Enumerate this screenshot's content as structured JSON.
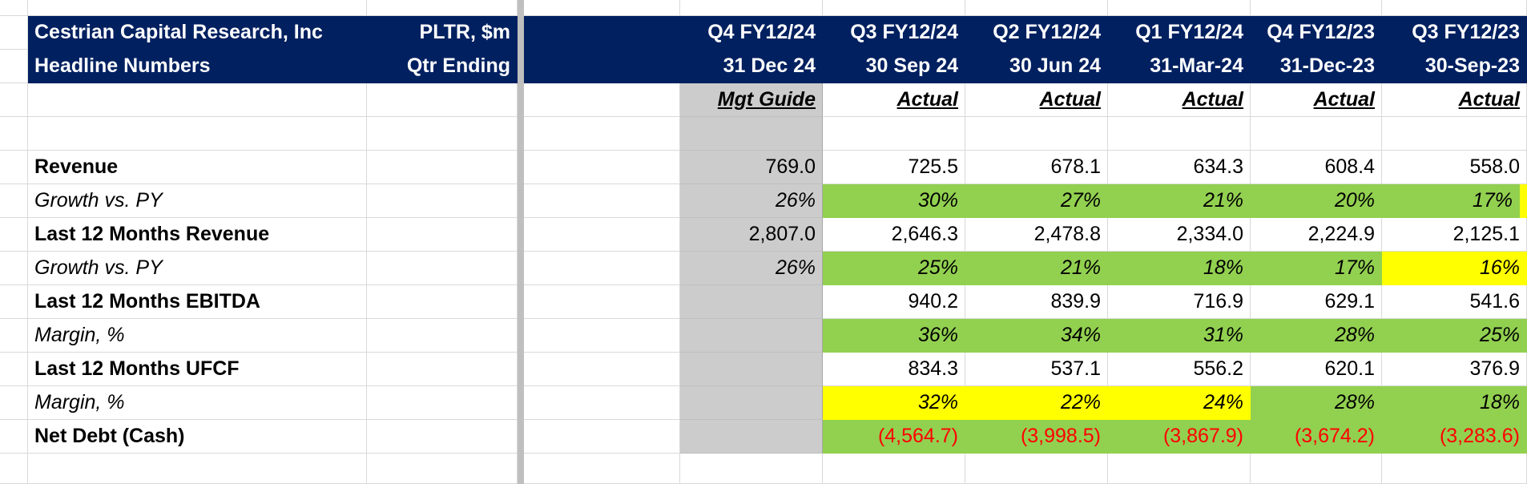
{
  "header": {
    "company": "Cestrian Capital Research, Inc",
    "subtitle": "Headline Numbers",
    "ticker": "PLTR, $m",
    "qtr_ending": "Qtr Ending"
  },
  "columns": [
    {
      "quarter": "Q4 FY12/24",
      "date": "31 Dec 24",
      "kind": "Mgt Guide"
    },
    {
      "quarter": "Q3 FY12/24",
      "date": "30 Sep 24",
      "kind": "Actual"
    },
    {
      "quarter": "Q2 FY12/24",
      "date": "30 Jun 24",
      "kind": "Actual"
    },
    {
      "quarter": "Q1 FY12/24",
      "date": "31-Mar-24",
      "kind": "Actual"
    },
    {
      "quarter": "Q4 FY12/23",
      "date": "31-Dec-23",
      "kind": "Actual"
    },
    {
      "quarter": "Q3 FY12/23",
      "date": "30-Sep-23",
      "kind": "Actual"
    }
  ],
  "rows": [
    {
      "label": "Revenue",
      "values": [
        "769.0",
        "725.5",
        "678.1",
        "634.3",
        "608.4",
        "558.0"
      ]
    },
    {
      "label": "Growth vs. PY",
      "values": [
        "26%",
        "30%",
        "27%",
        "21%",
        "20%",
        "17%"
      ]
    },
    {
      "label": "Last 12 Months Revenue",
      "values": [
        "2,807.0",
        "2,646.3",
        "2,478.8",
        "2,334.0",
        "2,224.9",
        "2,125.1"
      ]
    },
    {
      "label": "Growth vs. PY",
      "values": [
        "26%",
        "25%",
        "21%",
        "18%",
        "17%",
        "16%"
      ]
    },
    {
      "label": "Last 12 Months EBITDA",
      "values": [
        "",
        "940.2",
        "839.9",
        "716.9",
        "629.1",
        "541.6"
      ]
    },
    {
      "label": "Margin, %",
      "values": [
        "",
        "36%",
        "34%",
        "31%",
        "28%",
        "25%"
      ]
    },
    {
      "label": "Last 12 Months UFCF",
      "values": [
        "",
        "834.3",
        "537.1",
        "556.2",
        "620.1",
        "376.9"
      ]
    },
    {
      "label": "Margin, %",
      "values": [
        "",
        "32%",
        "22%",
        "24%",
        "28%",
        "18%"
      ]
    },
    {
      "label": "Net Debt (Cash)",
      "values": [
        "",
        "(4,564.7)",
        "(3,998.5)",
        "(3,867.9)",
        "(3,674.2)",
        "(3,283.6)"
      ]
    }
  ],
  "colors": {
    "header_bg": "#002060",
    "guide_bg": "#cccccc",
    "good": "#92d050",
    "warn": "#ffff00",
    "negative_text": "#ff0000"
  }
}
